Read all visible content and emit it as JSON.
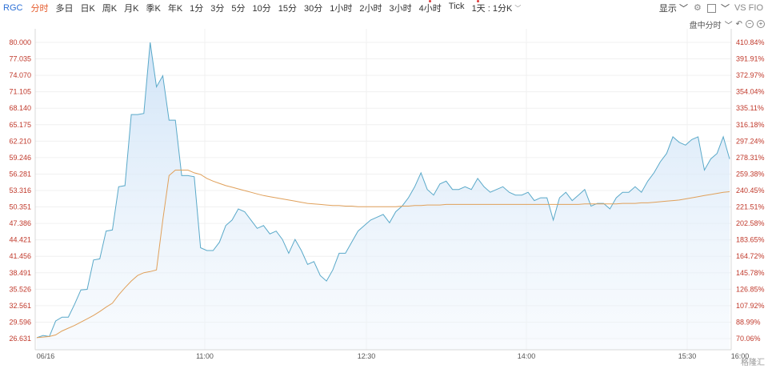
{
  "toolbar": {
    "symbol": "RGC",
    "timeframes": [
      "分时",
      "多日",
      "日K",
      "周K",
      "月K",
      "季K",
      "年K",
      "1分",
      "3分",
      "5分",
      "10分",
      "15分",
      "30分",
      "1小时",
      "2小时",
      "3小时",
      "4小时",
      "Tick"
    ],
    "active_index": 0,
    "range_label": "1天 : 1分K",
    "display_label": "显示",
    "vs_label": "VS FIO"
  },
  "subbar": {
    "label": "盘中分时"
  },
  "watermark": "格隆汇",
  "colors": {
    "price_line": "#5aa9c9",
    "avg_line": "#e0a05a",
    "fill_top": "#cfe3f7",
    "axis_text": "#c0392b"
  },
  "chart_data": {
    "type": "line",
    "x_ticks": [
      "06/16",
      "11:00",
      "12:30",
      "14:00",
      "15:30",
      "16:00"
    ],
    "y_ticks_left": [
      "80.000",
      "77.035",
      "74.070",
      "71.105",
      "68.140",
      "65.175",
      "62.210",
      "59.246",
      "56.281",
      "53.316",
      "50.351",
      "47.386",
      "44.421",
      "41.456",
      "38.491",
      "35.526",
      "32.561",
      "29.596",
      "26.631"
    ],
    "y_ticks_right": [
      "410.84%",
      "391.91%",
      "372.97%",
      "354.04%",
      "335.11%",
      "316.18%",
      "297.24%",
      "278.31%",
      "259.38%",
      "240.45%",
      "221.51%",
      "202.58%",
      "183.65%",
      "164.72%",
      "145.78%",
      "126.85%",
      "107.92%",
      "88.99%",
      "70.06%"
    ],
    "ylim": [
      25.5,
      80.5
    ],
    "series": [
      {
        "values": [
          26.8,
          27.2,
          27.0,
          29.8,
          30.5,
          30.5,
          32.8,
          35.4,
          35.5,
          40.8,
          41.0,
          46.0,
          46.2,
          54.0,
          54.2,
          67.0,
          67.0,
          67.2,
          80.0,
          72.0,
          74.0,
          66.0,
          66.0,
          56.0,
          56.0,
          55.8,
          43.0,
          42.5,
          42.5,
          44.0,
          47.0,
          48.0,
          50.0,
          49.5,
          48.0,
          46.5,
          47.0,
          45.5,
          46.0,
          44.5,
          42.0,
          44.5,
          42.5,
          40.0,
          40.5,
          38.0,
          37.0,
          39.0,
          42.0,
          42.0,
          44.0,
          46.0,
          47.0,
          48.0,
          48.5,
          49.0,
          47.5,
          49.5,
          50.5,
          52.0,
          54.0,
          56.5,
          53.5,
          52.5,
          54.5,
          55.0,
          53.5,
          53.5,
          54.0,
          53.5,
          55.5,
          54.0,
          53.0,
          53.5,
          54.0,
          53.0,
          52.5,
          52.5,
          53.0,
          51.5,
          52.0,
          52.0,
          48.0,
          52.0,
          53.0,
          51.5,
          52.5,
          53.5,
          50.5,
          51.0,
          51.0,
          50.0,
          52.0,
          53.0,
          53.0,
          54.0,
          53.0,
          55.0,
          56.5,
          58.5,
          60.0,
          63.0,
          62.0,
          61.5,
          62.5,
          63.0,
          57.0,
          59.0,
          60.0,
          63.0,
          59.0
        ]
      },
      {
        "values": [
          26.8,
          26.9,
          27.0,
          27.3,
          28.0,
          28.5,
          29.0,
          29.6,
          30.2,
          30.8,
          31.5,
          32.3,
          33.0,
          34.5,
          35.8,
          37.0,
          38.0,
          38.5,
          38.7,
          39.0,
          48.0,
          56.0,
          57.0,
          57.0,
          57.0,
          56.5,
          56.2,
          55.5,
          55.0,
          54.6,
          54.2,
          53.9,
          53.6,
          53.3,
          53.0,
          52.7,
          52.4,
          52.2,
          52.0,
          51.8,
          51.6,
          51.4,
          51.2,
          51.0,
          50.9,
          50.8,
          50.7,
          50.6,
          50.6,
          50.5,
          50.5,
          50.4,
          50.4,
          50.4,
          50.4,
          50.4,
          50.4,
          50.4,
          50.5,
          50.5,
          50.6,
          50.6,
          50.7,
          50.7,
          50.7,
          50.8,
          50.8,
          50.8,
          50.8,
          50.8,
          50.8,
          50.8,
          50.8,
          50.8,
          50.8,
          50.8,
          50.8,
          50.8,
          50.8,
          50.8,
          50.8,
          50.8,
          50.8,
          50.8,
          50.8,
          50.8,
          50.8,
          50.9,
          50.9,
          50.9,
          50.9,
          50.9,
          50.9,
          51.0,
          51.0,
          51.0,
          51.1,
          51.1,
          51.2,
          51.3,
          51.4,
          51.5,
          51.6,
          51.8,
          52.0,
          52.2,
          52.4,
          52.6,
          52.8,
          53.0,
          53.1
        ]
      }
    ]
  }
}
